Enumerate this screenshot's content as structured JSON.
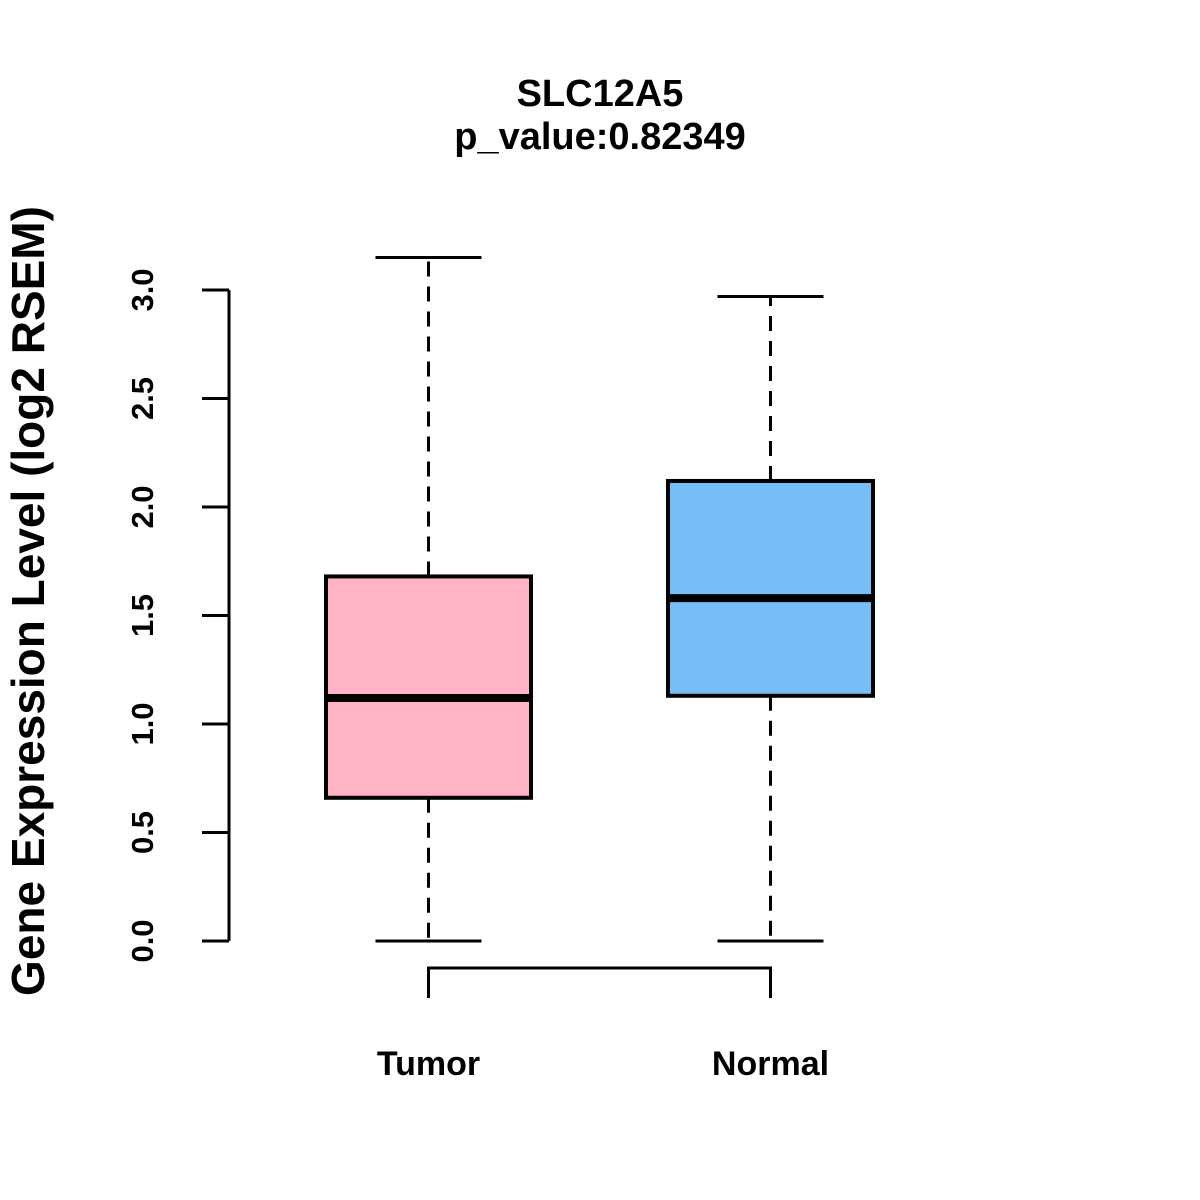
{
  "title": {
    "gene": "SLC12A5",
    "p_value_label": "p_value:0.82349"
  },
  "colors": {
    "tumor_fill": "#FFB3C5",
    "normal_fill": "#76BEF5",
    "line": "#000000",
    "background": "#FFFFFF"
  },
  "chart_data": {
    "type": "boxplot",
    "title": "SLC12A5",
    "subtitle": "p_value:0.82349",
    "xlabel": "",
    "ylabel": "Gene Expression Level (log2 RSEM)",
    "categories": [
      "Tumor",
      "Normal"
    ],
    "ylim": [
      0.0,
      3.0
    ],
    "y_ticks": [
      0.0,
      0.5,
      1.0,
      1.5,
      2.0,
      2.5,
      3.0
    ],
    "y_tick_labels": [
      "0.0",
      "0.5",
      "1.0",
      "1.5",
      "2.0",
      "2.5",
      "3.0"
    ],
    "grid": false,
    "legend": "none",
    "series": [
      {
        "name": "Tumor",
        "min": 0.0,
        "q1": 0.66,
        "median": 1.12,
        "q3": 1.68,
        "max": 3.15,
        "fill": "#FFB3C5"
      },
      {
        "name": "Normal",
        "min": 0.0,
        "q1": 1.13,
        "median": 1.58,
        "q3": 2.12,
        "max": 2.97,
        "fill": "#76BEF5"
      }
    ]
  }
}
